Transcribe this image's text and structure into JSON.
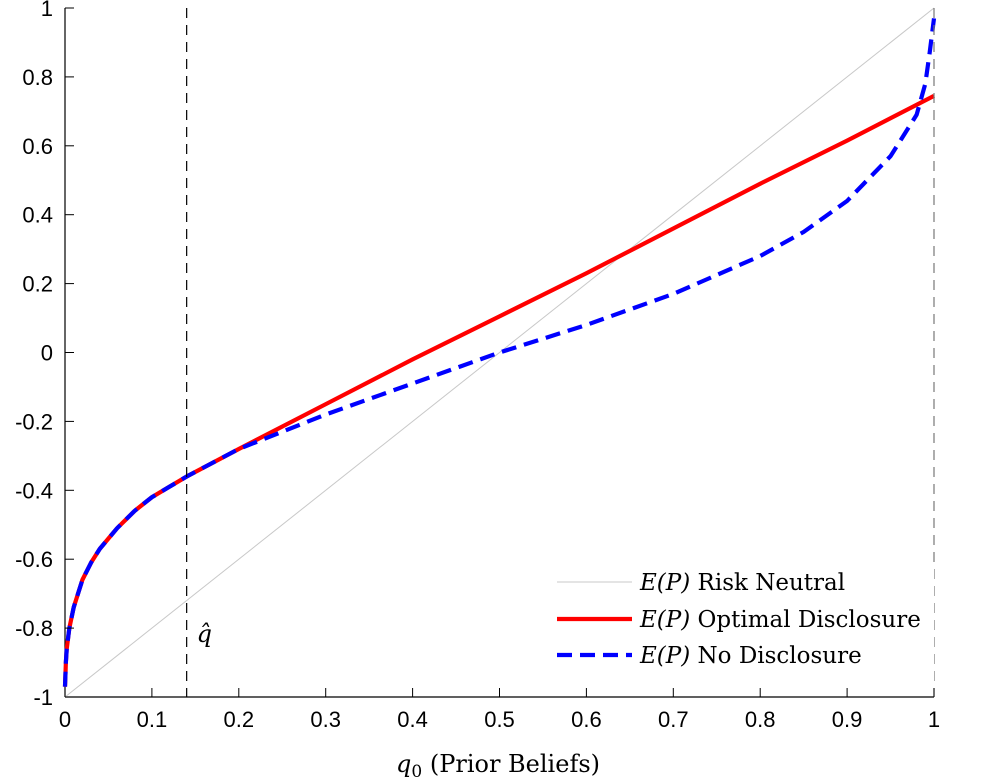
{
  "chart_data": {
    "type": "line",
    "title": "",
    "xlabel_italic": "q",
    "xlabel_sub": "0",
    "xlabel_rest": " (Prior Beliefs)",
    "ylabel": "",
    "xlim": [
      0,
      1
    ],
    "ylim": [
      -1,
      1
    ],
    "grid": false,
    "legend_position": "bottom-right",
    "x_ticks": [
      0,
      0.1,
      0.2,
      0.3,
      0.4,
      0.5,
      0.6,
      0.7,
      0.8,
      0.9,
      1
    ],
    "x_tick_labels": [
      "0",
      "0.1",
      "0.2",
      "0.3",
      "0.4",
      "0.5",
      "0.6",
      "0.7",
      "0.8",
      "0.9",
      "1"
    ],
    "y_ticks": [
      -1,
      -0.8,
      -0.6,
      -0.4,
      -0.2,
      0,
      0.2,
      0.4,
      0.6,
      0.8,
      1
    ],
    "y_tick_labels": [
      "-1",
      "-0.8",
      "-0.6",
      "-0.4",
      "-0.2",
      "0",
      "0.2",
      "0.4",
      "0.6",
      "0.8",
      "1"
    ],
    "vertical_markers": [
      {
        "x": 0.14,
        "label": "q̂"
      },
      {
        "x": 1.0,
        "label": ""
      }
    ],
    "series": [
      {
        "name_italic": "E(P)",
        "name_rest": " Risk Neutral",
        "color": "#c8c8c8",
        "style": "solid",
        "x": [
          0,
          1
        ],
        "y": [
          -1,
          1
        ]
      },
      {
        "name_italic": "E(P)",
        "name_rest": " Optimal Disclosure",
        "color": "#ff0000",
        "style": "solid",
        "x": [
          0,
          0.001,
          0.002,
          0.005,
          0.01,
          0.015,
          0.02,
          0.03,
          0.04,
          0.05,
          0.06,
          0.07,
          0.08,
          0.09,
          0.1,
          0.12,
          0.14,
          0.2,
          0.3,
          0.4,
          0.5,
          0.6,
          0.7,
          0.8,
          0.9,
          1.0
        ],
        "y": [
          -0.97,
          -0.9,
          -0.86,
          -0.8,
          -0.74,
          -0.7,
          -0.66,
          -0.61,
          -0.57,
          -0.54,
          -0.51,
          -0.485,
          -0.46,
          -0.44,
          -0.42,
          -0.39,
          -0.36,
          -0.28,
          -0.15,
          -0.02,
          0.105,
          0.23,
          0.36,
          0.49,
          0.615,
          0.745
        ]
      },
      {
        "name_italic": "E(P)",
        "name_rest": " No Disclosure",
        "color": "#0000ff",
        "style": "dashed",
        "x": [
          0,
          0.001,
          0.002,
          0.005,
          0.01,
          0.015,
          0.02,
          0.03,
          0.04,
          0.05,
          0.06,
          0.07,
          0.08,
          0.09,
          0.1,
          0.12,
          0.14,
          0.2,
          0.3,
          0.4,
          0.5,
          0.6,
          0.7,
          0.8,
          0.85,
          0.9,
          0.95,
          0.98,
          0.99,
          0.995,
          1.0
        ],
        "y": [
          -0.97,
          -0.9,
          -0.86,
          -0.8,
          -0.74,
          -0.7,
          -0.66,
          -0.61,
          -0.57,
          -0.54,
          -0.51,
          -0.485,
          -0.46,
          -0.44,
          -0.42,
          -0.39,
          -0.36,
          -0.28,
          -0.18,
          -0.09,
          0.0,
          0.08,
          0.17,
          0.28,
          0.35,
          0.44,
          0.57,
          0.69,
          0.78,
          0.87,
          0.97
        ]
      }
    ]
  }
}
